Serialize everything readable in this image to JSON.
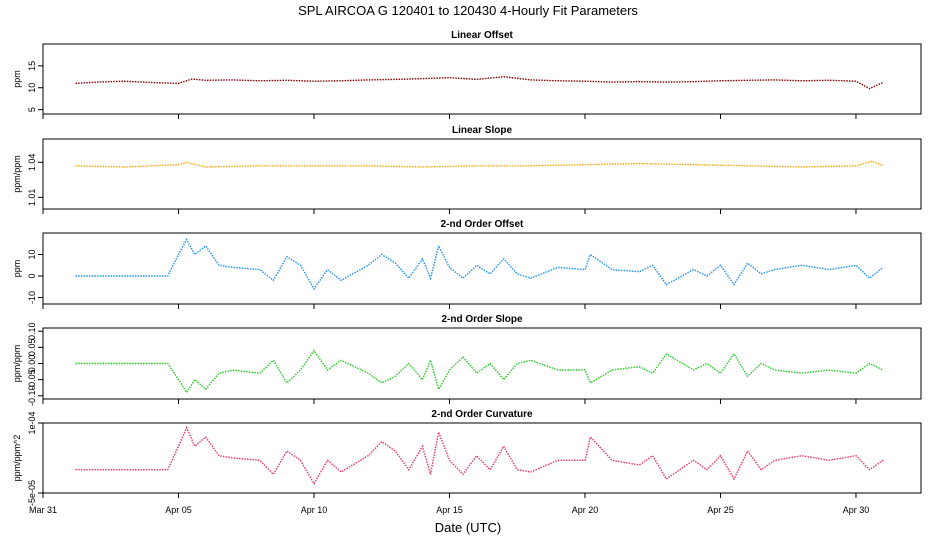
{
  "figure": {
    "title": "SPL   AIRCOA G   120401 to 120430   4-Hourly Fit Parameters",
    "xlabel": "Date (UTC)",
    "x_ticks": [
      "Mar 31",
      "Apr 05",
      "Apr 10",
      "Apr 15",
      "Apr 20",
      "Apr 25",
      "Apr 30"
    ]
  },
  "chart_data": [
    {
      "type": "line",
      "title": "Linear Offset",
      "ylabel": "ppm",
      "ylim": [
        4,
        20
      ],
      "y_ticks": [
        "5",
        "10",
        "15"
      ],
      "y_tick_values": [
        5,
        10,
        15
      ],
      "color": "#8b0000",
      "series_x_days": [
        1.2,
        31.0
      ],
      "series": [
        {
          "x": 1.2,
          "y": 11.0
        },
        {
          "x": 2.0,
          "y": 11.3
        },
        {
          "x": 3.0,
          "y": 11.5
        },
        {
          "x": 4.0,
          "y": 11.2
        },
        {
          "x": 5.0,
          "y": 11.0
        },
        {
          "x": 5.5,
          "y": 12.0
        },
        {
          "x": 6.0,
          "y": 11.7
        },
        {
          "x": 7.0,
          "y": 11.8
        },
        {
          "x": 8.0,
          "y": 11.6
        },
        {
          "x": 9.0,
          "y": 11.7
        },
        {
          "x": 10.0,
          "y": 11.5
        },
        {
          "x": 11.0,
          "y": 11.6
        },
        {
          "x": 12.0,
          "y": 11.8
        },
        {
          "x": 13.0,
          "y": 11.9
        },
        {
          "x": 14.0,
          "y": 12.1
        },
        {
          "x": 15.0,
          "y": 12.3
        },
        {
          "x": 16.0,
          "y": 11.9
        },
        {
          "x": 17.0,
          "y": 12.5
        },
        {
          "x": 18.0,
          "y": 11.8
        },
        {
          "x": 19.0,
          "y": 11.6
        },
        {
          "x": 20.0,
          "y": 11.5
        },
        {
          "x": 21.0,
          "y": 11.3
        },
        {
          "x": 22.0,
          "y": 11.4
        },
        {
          "x": 23.0,
          "y": 11.3
        },
        {
          "x": 24.0,
          "y": 11.4
        },
        {
          "x": 25.0,
          "y": 11.6
        },
        {
          "x": 26.0,
          "y": 11.7
        },
        {
          "x": 27.0,
          "y": 11.8
        },
        {
          "x": 28.0,
          "y": 11.6
        },
        {
          "x": 29.0,
          "y": 11.7
        },
        {
          "x": 30.0,
          "y": 11.5
        },
        {
          "x": 30.5,
          "y": 9.8
        },
        {
          "x": 31.0,
          "y": 11.2
        }
      ]
    },
    {
      "type": "line",
      "title": "Linear Slope",
      "ylabel": "ppm/ppm",
      "ylim": [
        1.0,
        1.06
      ],
      "y_ticks": [
        "1.01",
        "1.04"
      ],
      "y_tick_values": [
        1.01,
        1.04
      ],
      "color": "#ffa500",
      "series": [
        {
          "x": 1.2,
          "y": 1.037
        },
        {
          "x": 3.0,
          "y": 1.036
        },
        {
          "x": 5.0,
          "y": 1.038
        },
        {
          "x": 5.3,
          "y": 1.04
        },
        {
          "x": 6.0,
          "y": 1.036
        },
        {
          "x": 8.0,
          "y": 1.037
        },
        {
          "x": 10.0,
          "y": 1.037
        },
        {
          "x": 12.0,
          "y": 1.037
        },
        {
          "x": 14.0,
          "y": 1.036
        },
        {
          "x": 16.0,
          "y": 1.037
        },
        {
          "x": 18.0,
          "y": 1.037
        },
        {
          "x": 20.0,
          "y": 1.038
        },
        {
          "x": 22.0,
          "y": 1.039
        },
        {
          "x": 24.0,
          "y": 1.038
        },
        {
          "x": 26.0,
          "y": 1.037
        },
        {
          "x": 28.0,
          "y": 1.036
        },
        {
          "x": 30.0,
          "y": 1.037
        },
        {
          "x": 30.6,
          "y": 1.041
        },
        {
          "x": 31.0,
          "y": 1.037
        }
      ]
    },
    {
      "type": "line",
      "title": "2-nd Order Offset",
      "ylabel": "ppm",
      "ylim": [
        -13,
        20
      ],
      "y_ticks": [
        "-10",
        "0",
        "10"
      ],
      "y_tick_values": [
        -10,
        0,
        10
      ],
      "color": "#1e90ff",
      "series": [
        {
          "x": 1.2,
          "y": 0.0
        },
        {
          "x": 4.6,
          "y": 0.0
        },
        {
          "x": 5.0,
          "y": 10.0
        },
        {
          "x": 5.3,
          "y": 17.0
        },
        {
          "x": 5.6,
          "y": 10.0
        },
        {
          "x": 6.0,
          "y": 14.0
        },
        {
          "x": 6.5,
          "y": 5.0
        },
        {
          "x": 7.0,
          "y": 4.0
        },
        {
          "x": 8.0,
          "y": 3.0
        },
        {
          "x": 8.5,
          "y": -2.0
        },
        {
          "x": 9.0,
          "y": 9.0
        },
        {
          "x": 9.5,
          "y": 5.0
        },
        {
          "x": 10.0,
          "y": -6.0
        },
        {
          "x": 10.5,
          "y": 3.0
        },
        {
          "x": 11.0,
          "y": -2.0
        },
        {
          "x": 12.0,
          "y": 5.0
        },
        {
          "x": 12.5,
          "y": 10.0
        },
        {
          "x": 13.0,
          "y": 6.0
        },
        {
          "x": 13.5,
          "y": -1.0
        },
        {
          "x": 14.0,
          "y": 8.0
        },
        {
          "x": 14.3,
          "y": -1.0
        },
        {
          "x": 14.6,
          "y": 14.0
        },
        {
          "x": 15.0,
          "y": 4.0
        },
        {
          "x": 15.5,
          "y": -1.0
        },
        {
          "x": 16.0,
          "y": 5.0
        },
        {
          "x": 16.5,
          "y": 1.0
        },
        {
          "x": 17.0,
          "y": 8.0
        },
        {
          "x": 17.5,
          "y": 1.0
        },
        {
          "x": 18.0,
          "y": -1.0
        },
        {
          "x": 19.0,
          "y": 4.0
        },
        {
          "x": 20.0,
          "y": 3.0
        },
        {
          "x": 20.2,
          "y": 10.0
        },
        {
          "x": 21.0,
          "y": 3.0
        },
        {
          "x": 22.0,
          "y": 2.0
        },
        {
          "x": 22.5,
          "y": 5.0
        },
        {
          "x": 23.0,
          "y": -4.0
        },
        {
          "x": 24.0,
          "y": 3.0
        },
        {
          "x": 24.5,
          "y": 0.0
        },
        {
          "x": 25.0,
          "y": 5.0
        },
        {
          "x": 25.5,
          "y": -4.0
        },
        {
          "x": 26.0,
          "y": 6.0
        },
        {
          "x": 26.5,
          "y": 1.0
        },
        {
          "x": 27.0,
          "y": 3.0
        },
        {
          "x": 28.0,
          "y": 5.0
        },
        {
          "x": 29.0,
          "y": 3.0
        },
        {
          "x": 30.0,
          "y": 5.0
        },
        {
          "x": 30.5,
          "y": -1.0
        },
        {
          "x": 31.0,
          "y": 4.0
        }
      ]
    },
    {
      "type": "line",
      "title": "2-nd Order Slope",
      "ylabel": "ppm/ppm",
      "ylim": [
        -0.11,
        0.11
      ],
      "y_ticks": [
        "-0.10",
        "-0.05",
        "0.00",
        "0.05",
        "0.10"
      ],
      "y_tick_values": [
        -0.1,
        -0.05,
        0.0,
        0.05,
        0.1
      ],
      "color": "#22cc22",
      "series": [
        {
          "x": 1.2,
          "y": 0.0
        },
        {
          "x": 4.6,
          "y": 0.0
        },
        {
          "x": 5.0,
          "y": -0.05
        },
        {
          "x": 5.3,
          "y": -0.09
        },
        {
          "x": 5.6,
          "y": -0.05
        },
        {
          "x": 6.0,
          "y": -0.08
        },
        {
          "x": 6.5,
          "y": -0.03
        },
        {
          "x": 7.0,
          "y": -0.02
        },
        {
          "x": 8.0,
          "y": -0.03
        },
        {
          "x": 8.5,
          "y": 0.01
        },
        {
          "x": 9.0,
          "y": -0.06
        },
        {
          "x": 9.5,
          "y": -0.02
        },
        {
          "x": 10.0,
          "y": 0.04
        },
        {
          "x": 10.5,
          "y": -0.02
        },
        {
          "x": 11.0,
          "y": 0.01
        },
        {
          "x": 12.0,
          "y": -0.03
        },
        {
          "x": 12.5,
          "y": -0.06
        },
        {
          "x": 13.0,
          "y": -0.04
        },
        {
          "x": 13.5,
          "y": 0.0
        },
        {
          "x": 14.0,
          "y": -0.05
        },
        {
          "x": 14.3,
          "y": 0.01
        },
        {
          "x": 14.6,
          "y": -0.08
        },
        {
          "x": 15.0,
          "y": -0.02
        },
        {
          "x": 15.5,
          "y": 0.02
        },
        {
          "x": 16.0,
          "y": -0.03
        },
        {
          "x": 16.5,
          "y": 0.0
        },
        {
          "x": 17.0,
          "y": -0.05
        },
        {
          "x": 17.5,
          "y": 0.0
        },
        {
          "x": 18.0,
          "y": 0.01
        },
        {
          "x": 19.0,
          "y": -0.02
        },
        {
          "x": 20.0,
          "y": -0.02
        },
        {
          "x": 20.2,
          "y": -0.06
        },
        {
          "x": 21.0,
          "y": -0.02
        },
        {
          "x": 22.0,
          "y": -0.01
        },
        {
          "x": 22.5,
          "y": -0.03
        },
        {
          "x": 23.0,
          "y": 0.03
        },
        {
          "x": 24.0,
          "y": -0.02
        },
        {
          "x": 24.5,
          "y": 0.0
        },
        {
          "x": 25.0,
          "y": -0.03
        },
        {
          "x": 25.5,
          "y": 0.03
        },
        {
          "x": 26.0,
          "y": -0.04
        },
        {
          "x": 26.5,
          "y": 0.0
        },
        {
          "x": 27.0,
          "y": -0.02
        },
        {
          "x": 28.0,
          "y": -0.03
        },
        {
          "x": 29.0,
          "y": -0.02
        },
        {
          "x": 30.0,
          "y": -0.03
        },
        {
          "x": 30.5,
          "y": 0.0
        },
        {
          "x": 31.0,
          "y": -0.02
        }
      ]
    },
    {
      "type": "line",
      "title": "2-nd Order Curvature",
      "ylabel": "ppm/ppm^2",
      "ylim": [
        -5e-05,
        0.0001
      ],
      "y_ticks": [
        "-5e-05",
        "1e-04"
      ],
      "y_tick_values": [
        -5e-05,
        0.0001
      ],
      "color": "#ee3366",
      "series": [
        {
          "x": 1.2,
          "y": 0.0
        },
        {
          "x": 4.6,
          "y": 0.0
        },
        {
          "x": 5.0,
          "y": 5e-05
        },
        {
          "x": 5.3,
          "y": 9e-05
        },
        {
          "x": 5.6,
          "y": 5e-05
        },
        {
          "x": 6.0,
          "y": 7e-05
        },
        {
          "x": 6.5,
          "y": 3e-05
        },
        {
          "x": 7.0,
          "y": 2.5e-05
        },
        {
          "x": 8.0,
          "y": 2e-05
        },
        {
          "x": 8.5,
          "y": -1e-05
        },
        {
          "x": 9.0,
          "y": 4e-05
        },
        {
          "x": 9.5,
          "y": 2e-05
        },
        {
          "x": 10.0,
          "y": -3e-05
        },
        {
          "x": 10.5,
          "y": 2e-05
        },
        {
          "x": 11.0,
          "y": -5e-06
        },
        {
          "x": 12.0,
          "y": 3e-05
        },
        {
          "x": 12.5,
          "y": 6e-05
        },
        {
          "x": 13.0,
          "y": 4e-05
        },
        {
          "x": 13.5,
          "y": 0.0
        },
        {
          "x": 14.0,
          "y": 5e-05
        },
        {
          "x": 14.3,
          "y": -1e-05
        },
        {
          "x": 14.6,
          "y": 8e-05
        },
        {
          "x": 15.0,
          "y": 2e-05
        },
        {
          "x": 15.5,
          "y": -1e-05
        },
        {
          "x": 16.0,
          "y": 3e-05
        },
        {
          "x": 16.5,
          "y": 0.0
        },
        {
          "x": 17.0,
          "y": 5e-05
        },
        {
          "x": 17.5,
          "y": 0.0
        },
        {
          "x": 18.0,
          "y": -5e-06
        },
        {
          "x": 19.0,
          "y": 2e-05
        },
        {
          "x": 20.0,
          "y": 2e-05
        },
        {
          "x": 20.2,
          "y": 7e-05
        },
        {
          "x": 21.0,
          "y": 2e-05
        },
        {
          "x": 22.0,
          "y": 1e-05
        },
        {
          "x": 22.5,
          "y": 3e-05
        },
        {
          "x": 23.0,
          "y": -2e-05
        },
        {
          "x": 24.0,
          "y": 2e-05
        },
        {
          "x": 24.5,
          "y": 0.0
        },
        {
          "x": 25.0,
          "y": 3e-05
        },
        {
          "x": 25.5,
          "y": -2e-05
        },
        {
          "x": 26.0,
          "y": 4e-05
        },
        {
          "x": 26.5,
          "y": 0.0
        },
        {
          "x": 27.0,
          "y": 2e-05
        },
        {
          "x": 28.0,
          "y": 3e-05
        },
        {
          "x": 29.0,
          "y": 2e-05
        },
        {
          "x": 30.0,
          "y": 3e-05
        },
        {
          "x": 30.5,
          "y": 0.0
        },
        {
          "x": 31.0,
          "y": 2e-05
        }
      ]
    }
  ]
}
